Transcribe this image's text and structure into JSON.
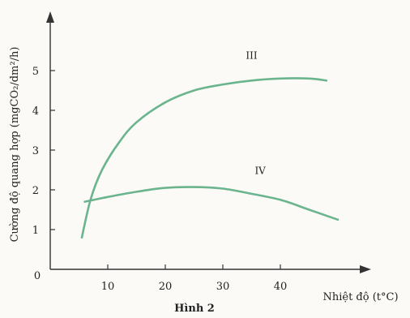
{
  "chart_data": {
    "type": "line",
    "xlabel": "Nhiệt độ (t°C)",
    "ylabel": "Cường độ quang hợp (mgCO₂/dm²/h)",
    "caption": "Hình 2",
    "origin_label": "0",
    "x_ticks": [
      "10",
      "20",
      "30",
      "40"
    ],
    "y_ticks": [
      "1",
      "2",
      "3",
      "4",
      "5"
    ],
    "xlim": [
      0,
      55
    ],
    "ylim": [
      0,
      6
    ],
    "grid": false,
    "colors": {
      "series": "#6ab48e",
      "axis": "#333333"
    },
    "series": [
      {
        "name": "III",
        "x": [
          5.5,
          7,
          9,
          12,
          15,
          20,
          25,
          30,
          35,
          40,
          45,
          48
        ],
        "y": [
          0.8,
          1.75,
          2.5,
          3.2,
          3.7,
          4.2,
          4.5,
          4.65,
          4.75,
          4.8,
          4.8,
          4.75
        ]
      },
      {
        "name": "IV",
        "x": [
          6,
          10,
          15,
          20,
          25,
          30,
          35,
          40,
          45,
          50
        ],
        "y": [
          1.7,
          1.82,
          1.95,
          2.05,
          2.07,
          2.03,
          1.9,
          1.75,
          1.5,
          1.25
        ]
      }
    ]
  }
}
